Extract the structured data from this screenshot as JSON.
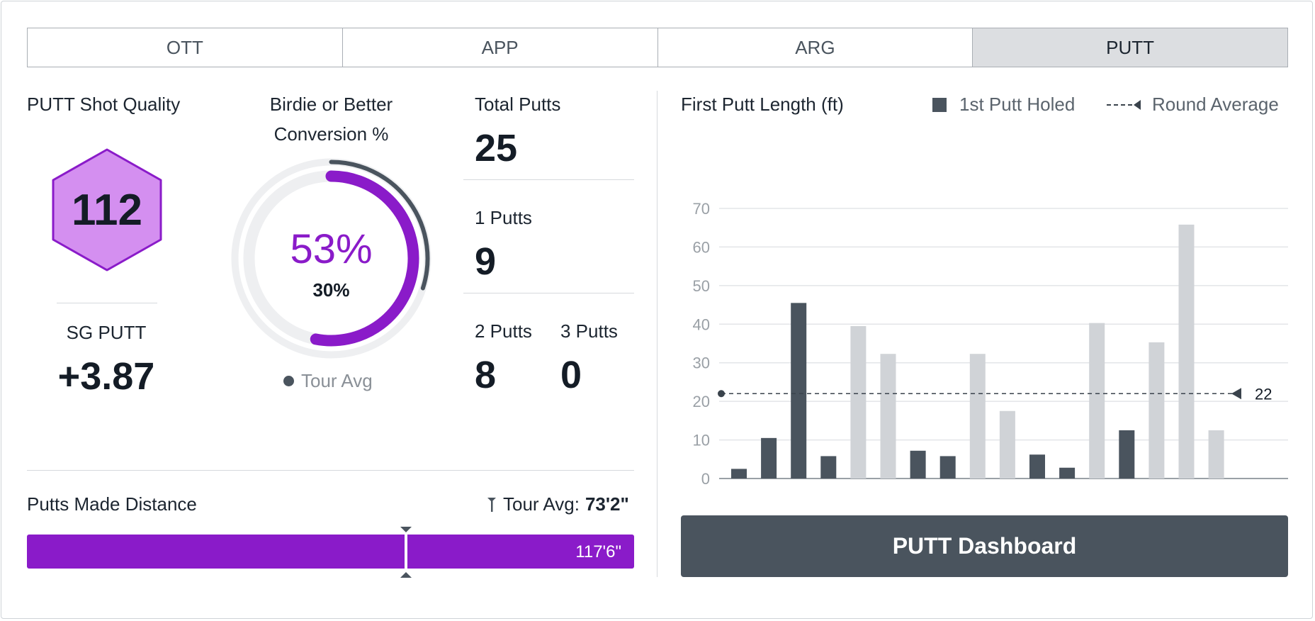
{
  "tabs": [
    {
      "label": "OTT",
      "active": false
    },
    {
      "label": "APP",
      "active": false
    },
    {
      "label": "ARG",
      "active": false
    },
    {
      "label": "PUTT",
      "active": true
    }
  ],
  "shot_quality": {
    "title": "PUTT Shot Quality",
    "value": "112"
  },
  "sg_putt": {
    "label": "SG PUTT",
    "value": "+3.87"
  },
  "conversion": {
    "title_line1": "Birdie or Better",
    "title_line2": "Conversion %",
    "value": "53%",
    "tour_value": "30%",
    "player_fraction": 0.53,
    "tour_fraction": 0.3,
    "legend": "Tour Avg"
  },
  "putts": {
    "total_label": "Total Putts",
    "total_value": "25",
    "one_label": "1 Putts",
    "one_value": "9",
    "two_label": "2 Putts",
    "two_value": "8",
    "three_label": "3 Putts",
    "three_value": "0"
  },
  "putts_made_distance": {
    "label": "Putts Made Distance",
    "tour_avg_label": "Tour Avg:",
    "tour_avg_value": "73'2\"",
    "value": "117'6\"",
    "tour_avg_fraction": 0.73
  },
  "colors": {
    "accent": "#8a1bc9",
    "hex_fill": "#d48ff0",
    "dark": "#4a545e",
    "light_bar": "#d0d3d7"
  },
  "chart_data": {
    "type": "bar",
    "title": "First Putt Length (ft)",
    "legend": [
      {
        "name": "1st Putt Holed",
        "color": "#4a545e"
      },
      {
        "name": "Round Average",
        "style": "dashed"
      }
    ],
    "yticks": [
      0,
      10,
      20,
      30,
      40,
      50,
      60,
      70
    ],
    "ylim": [
      0,
      70
    ],
    "values": [
      2.5,
      10.5,
      45.5,
      5.8,
      39.5,
      32.3,
      7.2,
      5.8,
      32.3,
      17.5,
      6.2,
      2.8,
      40.3,
      12.5,
      35.3,
      65.8,
      12.5
    ],
    "holed": [
      true,
      true,
      true,
      true,
      false,
      false,
      true,
      true,
      false,
      false,
      true,
      true,
      false,
      true,
      false,
      false,
      false
    ],
    "average": 22,
    "average_label": "22"
  },
  "button": {
    "label": "PUTT Dashboard"
  }
}
